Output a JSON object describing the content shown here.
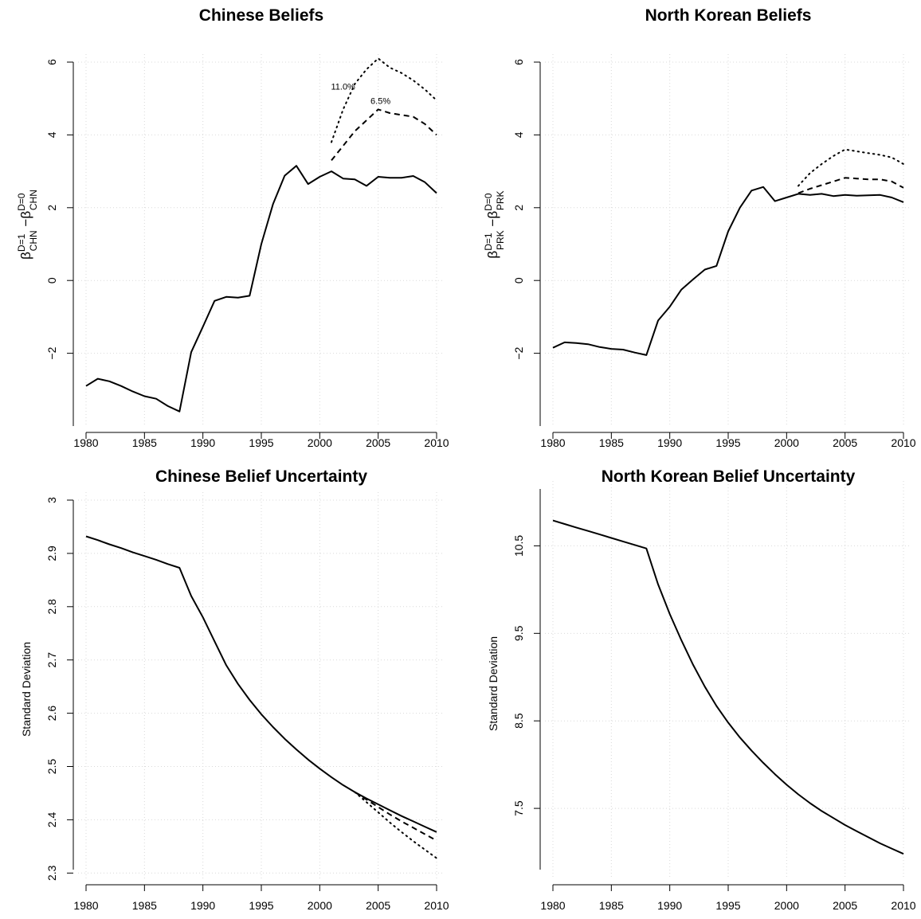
{
  "chart_data": [
    {
      "type": "line",
      "title": "Chinese Beliefs",
      "ylabel": {
        "beta": "β",
        "sub1": "CHN",
        "sup1": "D=1",
        "sub2": "CHN",
        "sup2": "D=0"
      },
      "xlim": [
        1980,
        2010
      ],
      "ylim": [
        -4,
        6
      ],
      "xticks": [
        1980,
        1985,
        1990,
        1995,
        2000,
        2005,
        2010
      ],
      "yticks": [
        -2,
        0,
        2,
        4,
        6
      ],
      "grid": true,
      "series": [
        {
          "style": "solid",
          "x": [
            1980,
            1981,
            1982,
            1983,
            1984,
            1985,
            1986,
            1987,
            1988,
            1989,
            1990,
            1991,
            1992,
            1993,
            1994,
            1995,
            1996,
            1997,
            1998,
            1999,
            2000,
            2001,
            2002,
            2003,
            2004,
            2005,
            2006,
            2007,
            2008,
            2009,
            2010
          ],
          "y": [
            -2.9,
            -2.7,
            -2.77,
            -2.9,
            -3.05,
            -3.18,
            -3.25,
            -3.45,
            -3.6,
            -1.97,
            -1.27,
            -0.56,
            -0.45,
            -0.47,
            -0.42,
            1.0,
            2.1,
            2.88,
            3.15,
            2.65,
            2.85,
            3.0,
            2.8,
            2.78,
            2.6,
            2.85,
            2.82,
            2.82,
            2.87,
            2.7,
            2.4
          ]
        },
        {
          "style": "dashed",
          "x": [
            2001,
            2002,
            2003,
            2004,
            2005,
            2006,
            2007,
            2008,
            2009,
            2010
          ],
          "y": [
            3.3,
            3.7,
            4.1,
            4.4,
            4.7,
            4.6,
            4.55,
            4.5,
            4.3,
            4.0
          ]
        },
        {
          "style": "dotted",
          "x": [
            2001,
            2002,
            2003,
            2004,
            2005,
            2006,
            2007,
            2008,
            2009,
            2010
          ],
          "y": [
            3.8,
            4.7,
            5.4,
            5.8,
            6.1,
            5.85,
            5.7,
            5.5,
            5.25,
            4.95
          ]
        }
      ],
      "annotations": [
        {
          "text": "11.0%",
          "x": 2002.0,
          "y": 5.25
        },
        {
          "text": "6.5%",
          "x": 2005.2,
          "y": 4.85
        }
      ]
    },
    {
      "type": "line",
      "title": "North Korean Beliefs",
      "ylabel": {
        "beta": "β",
        "sub1": "PRK",
        "sup1": "D=1",
        "sub2": "PRK",
        "sup2": "D=0"
      },
      "xlim": [
        1980,
        2010
      ],
      "ylim": [
        -4,
        6
      ],
      "xticks": [
        1980,
        1985,
        1990,
        1995,
        2000,
        2005,
        2010
      ],
      "yticks": [
        -2,
        0,
        2,
        4,
        6
      ],
      "grid": true,
      "series": [
        {
          "style": "solid",
          "x": [
            1980,
            1981,
            1982,
            1983,
            1984,
            1985,
            1986,
            1987,
            1988,
            1989,
            1990,
            1991,
            1992,
            1993,
            1994,
            1995,
            1996,
            1997,
            1998,
            1999,
            2000,
            2001,
            2002,
            2003,
            2004,
            2005,
            2006,
            2007,
            2008,
            2009,
            2010
          ],
          "y": [
            -1.85,
            -1.7,
            -1.72,
            -1.75,
            -1.83,
            -1.88,
            -1.9,
            -1.98,
            -2.05,
            -1.1,
            -0.72,
            -0.25,
            0.03,
            0.3,
            0.4,
            1.35,
            2.0,
            2.47,
            2.57,
            2.18,
            2.28,
            2.38,
            2.35,
            2.38,
            2.32,
            2.35,
            2.33,
            2.34,
            2.35,
            2.28,
            2.15
          ]
        },
        {
          "style": "dashed",
          "x": [
            2001,
            2002,
            2003,
            2004,
            2005,
            2006,
            2007,
            2008,
            2009,
            2010
          ],
          "y": [
            2.4,
            2.52,
            2.62,
            2.72,
            2.82,
            2.8,
            2.78,
            2.78,
            2.72,
            2.55
          ]
        },
        {
          "style": "dotted",
          "x": [
            2001,
            2002,
            2003,
            2004,
            2005,
            2006,
            2007,
            2008,
            2009,
            2010
          ],
          "y": [
            2.6,
            2.95,
            3.2,
            3.42,
            3.6,
            3.55,
            3.5,
            3.45,
            3.38,
            3.2
          ]
        }
      ],
      "annotations": []
    },
    {
      "type": "line",
      "title": "Chinese Belief Uncertainty",
      "ylabel_text": "Standard Deviation",
      "xlim": [
        1980,
        2010
      ],
      "ylim": [
        2.29,
        3.0
      ],
      "xticks": [
        1980,
        1985,
        1990,
        1995,
        2000,
        2005,
        2010
      ],
      "yticks": [
        2.3,
        2.4,
        2.5,
        2.6,
        2.7,
        2.8,
        2.9,
        3.0
      ],
      "ytick_labels": [
        "2.3",
        "2.4",
        "2.5",
        "2.6",
        "2.7",
        "2.8",
        "2.9",
        "3"
      ],
      "grid": true,
      "series": [
        {
          "style": "solid",
          "x": [
            1980,
            1981,
            1982,
            1983,
            1984,
            1985,
            1986,
            1987,
            1988,
            1989,
            1990,
            1991,
            1992,
            1993,
            1994,
            1995,
            1996,
            1997,
            1998,
            1999,
            2000,
            2001,
            2002,
            2003,
            2004,
            2005,
            2006,
            2007,
            2008,
            2009,
            2010
          ],
          "y": [
            2.932,
            2.925,
            2.917,
            2.91,
            2.902,
            2.895,
            2.888,
            2.88,
            2.873,
            2.82,
            2.78,
            2.735,
            2.69,
            2.655,
            2.625,
            2.598,
            2.574,
            2.552,
            2.532,
            2.513,
            2.496,
            2.48,
            2.465,
            2.452,
            2.44,
            2.429,
            2.418,
            2.407,
            2.397,
            2.387,
            2.377
          ]
        },
        {
          "style": "dashed",
          "x": [
            2003,
            2004,
            2005,
            2006,
            2007,
            2008,
            2009,
            2010
          ],
          "y": [
            2.452,
            2.438,
            2.424,
            2.41,
            2.397,
            2.385,
            2.373,
            2.361
          ]
        },
        {
          "style": "dotted",
          "x": [
            2003,
            2004,
            2005,
            2006,
            2007,
            2008,
            2009,
            2010
          ],
          "y": [
            2.452,
            2.433,
            2.414,
            2.395,
            2.377,
            2.36,
            2.344,
            2.328
          ]
        }
      ],
      "annotations": []
    },
    {
      "type": "line",
      "title": "North Korean Belief Uncertainty",
      "ylabel_text": "Standard Deviation",
      "xlim": [
        1980,
        2010
      ],
      "ylim": [
        6.7,
        11.15
      ],
      "xticks": [
        1980,
        1985,
        1990,
        1995,
        2000,
        2005,
        2010
      ],
      "yticks": [
        7.5,
        8.5,
        9.5,
        10.5
      ],
      "ytick_labels": [
        "7.5",
        "8.5",
        "9.5",
        "10.5"
      ],
      "grid": true,
      "series": [
        {
          "style": "solid",
          "x": [
            1980,
            1981,
            1982,
            1983,
            1984,
            1985,
            1986,
            1987,
            1988,
            1989,
            1990,
            1991,
            1992,
            1993,
            1994,
            1995,
            1996,
            1997,
            1998,
            1999,
            2000,
            2001,
            2002,
            2003,
            2004,
            2005,
            2006,
            2007,
            2008,
            2009,
            2010
          ],
          "y": [
            10.79,
            10.75,
            10.71,
            10.67,
            10.63,
            10.59,
            10.55,
            10.51,
            10.47,
            10.06,
            9.72,
            9.42,
            9.14,
            8.89,
            8.67,
            8.48,
            8.31,
            8.16,
            8.02,
            7.89,
            7.77,
            7.66,
            7.56,
            7.47,
            7.39,
            7.31,
            7.24,
            7.17,
            7.1,
            7.04,
            6.98
          ]
        }
      ],
      "annotations": []
    }
  ]
}
